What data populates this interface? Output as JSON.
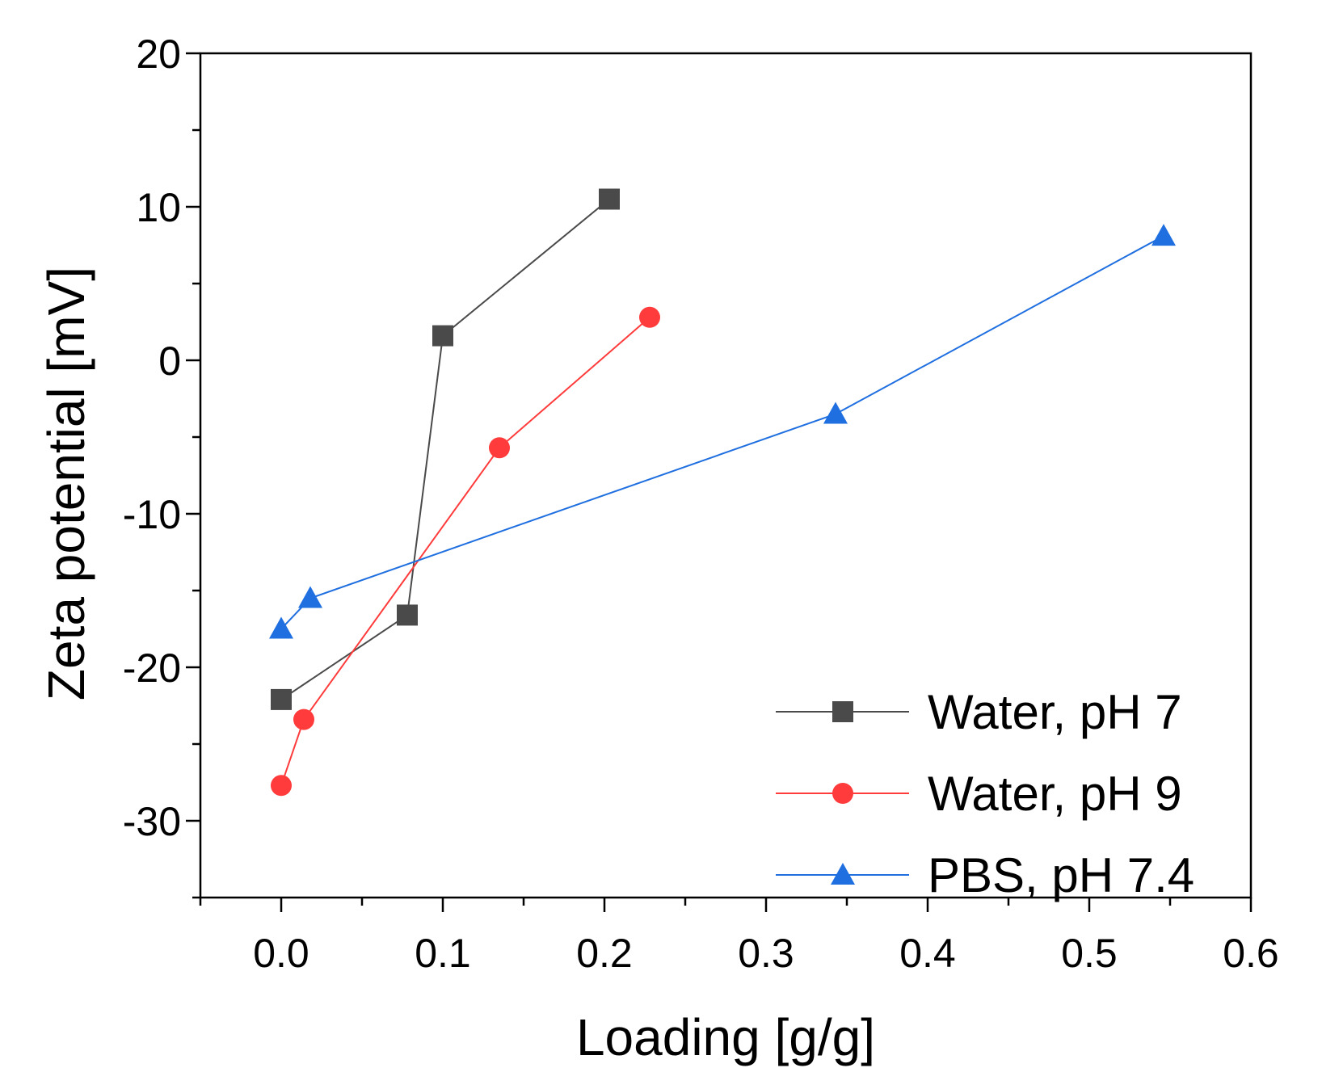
{
  "chart_data": {
    "type": "line",
    "title": "",
    "xlabel": "Loading [g/g]",
    "ylabel": "Zeta potential [mV]",
    "xlim": [
      -0.05,
      0.6
    ],
    "ylim": [
      -35,
      20
    ],
    "x_ticks": [
      0.0,
      0.1,
      0.2,
      0.3,
      0.4,
      0.5,
      0.6
    ],
    "x_tick_labels": [
      "0.0",
      "0.1",
      "0.2",
      "0.3",
      "0.4",
      "0.5",
      "0.6"
    ],
    "y_ticks": [
      -30,
      -20,
      -10,
      0,
      10,
      20
    ],
    "y_tick_labels": [
      "-30",
      "-20",
      "-10",
      "0",
      "10",
      "20"
    ],
    "grid": false,
    "legend_position": "bottom-right",
    "series": [
      {
        "name": "Water, pH 7",
        "color": "#4a4a4a",
        "marker": "square",
        "x": [
          0.0,
          0.078,
          0.1,
          0.203
        ],
        "y": [
          -22.1,
          -16.6,
          1.6,
          10.5
        ]
      },
      {
        "name": "Water, pH 9",
        "color": "#ff3b3b",
        "marker": "circle",
        "x": [
          0.0,
          0.014,
          0.135,
          0.228
        ],
        "y": [
          -27.7,
          -23.4,
          -5.7,
          2.8
        ]
      },
      {
        "name": "PBS, pH 7.4",
        "color": "#1f6fe0",
        "marker": "triangle",
        "x": [
          0.0,
          0.018,
          0.343,
          0.546
        ],
        "y": [
          -17.5,
          -15.5,
          -3.5,
          8.1
        ]
      }
    ]
  }
}
